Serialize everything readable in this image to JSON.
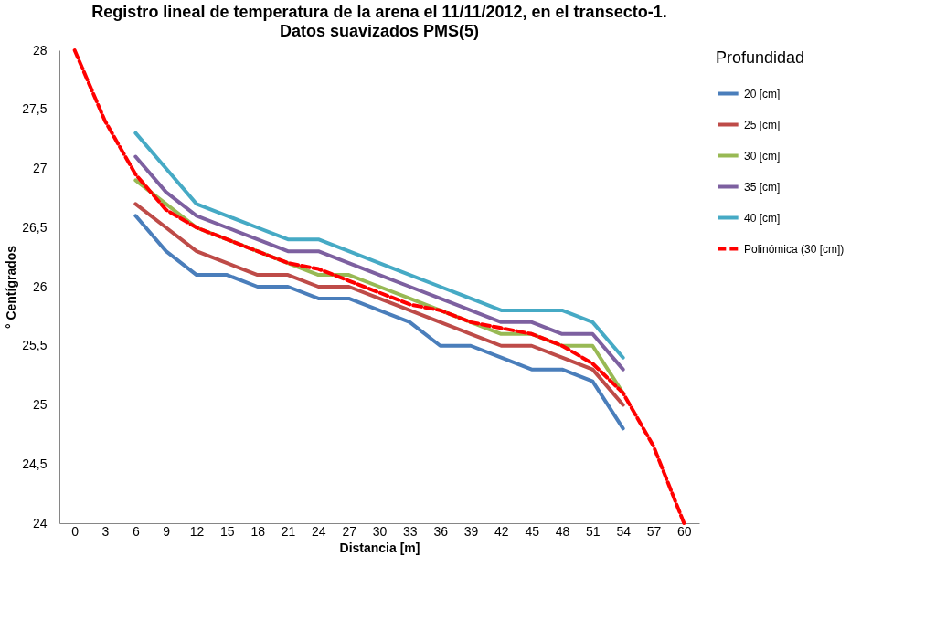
{
  "chart_data": {
    "type": "line",
    "title": "Registro lineal de temperatura de la arena el 11/11/2012,  en el transecto-1.",
    "subtitle": "Datos suavizados PMS(5)",
    "xlabel": "Distancia [m]",
    "ylabel": "° Centígrados",
    "legend_title": "Profundidad",
    "x": [
      0,
      3,
      6,
      9,
      12,
      15,
      18,
      21,
      24,
      27,
      30,
      33,
      36,
      39,
      42,
      45,
      48,
      51,
      54,
      57,
      60
    ],
    "xlim": [
      -1.5,
      61.5
    ],
    "xticks": [
      0,
      3,
      6,
      9,
      12,
      15,
      18,
      21,
      24,
      27,
      30,
      33,
      36,
      39,
      42,
      45,
      48,
      51,
      54,
      57,
      60
    ],
    "series": [
      {
        "name": "20 [cm]",
        "color": "#4a7ebb",
        "values": [
          null,
          null,
          26.6,
          26.3,
          26.1,
          26.1,
          26.0,
          26.0,
          25.9,
          25.9,
          25.8,
          25.7,
          25.5,
          25.5,
          25.4,
          25.3,
          25.3,
          25.2,
          24.8,
          null,
          null
        ]
      },
      {
        "name": "25 [cm]",
        "color": "#be4b48",
        "values": [
          null,
          null,
          26.7,
          26.5,
          26.3,
          26.2,
          26.1,
          26.1,
          26.0,
          26.0,
          25.9,
          25.8,
          25.7,
          25.6,
          25.5,
          25.5,
          25.4,
          25.3,
          25.0,
          null,
          null
        ]
      },
      {
        "name": "30 [cm]",
        "color": "#98b954",
        "values": [
          null,
          null,
          26.9,
          26.7,
          26.5,
          26.4,
          26.3,
          26.2,
          26.1,
          26.1,
          26.0,
          25.9,
          25.8,
          25.7,
          25.6,
          25.6,
          25.5,
          25.5,
          25.1,
          null,
          null
        ]
      },
      {
        "name": "35 [cm]",
        "color": "#7d60a0",
        "values": [
          null,
          null,
          27.1,
          26.8,
          26.6,
          26.5,
          26.4,
          26.3,
          26.3,
          26.2,
          26.1,
          26.0,
          25.9,
          25.8,
          25.7,
          25.7,
          25.6,
          25.6,
          25.3,
          null,
          null
        ]
      },
      {
        "name": "40 [cm]",
        "color": "#46aac5",
        "values": [
          null,
          null,
          27.3,
          27.0,
          26.7,
          26.6,
          26.5,
          26.4,
          26.4,
          26.3,
          26.2,
          26.1,
          26.0,
          25.9,
          25.8,
          25.8,
          25.8,
          25.7,
          25.4,
          null,
          null
        ]
      },
      {
        "name": "Polinómica (30 [cm])",
        "color": "#ff0000",
        "line_style": "dashed",
        "values": [
          28.0,
          27.4,
          26.95,
          26.65,
          26.5,
          26.4,
          26.3,
          26.2,
          26.15,
          26.05,
          25.95,
          25.85,
          25.8,
          25.7,
          25.65,
          25.6,
          25.5,
          25.35,
          25.1,
          24.65,
          24.0
        ]
      }
    ],
    "ylim": [
      24,
      28
    ],
    "yticks": [
      24,
      {
        "value": 24.5,
        "label": "24,5"
      },
      25,
      {
        "value": 25.5,
        "label": "25,5"
      },
      26,
      {
        "value": 26.5,
        "label": "26,5"
      },
      27,
      {
        "value": 27.5,
        "label": "27,5"
      },
      28
    ],
    "grid": false,
    "legend": "right",
    "line_style": "solid"
  }
}
